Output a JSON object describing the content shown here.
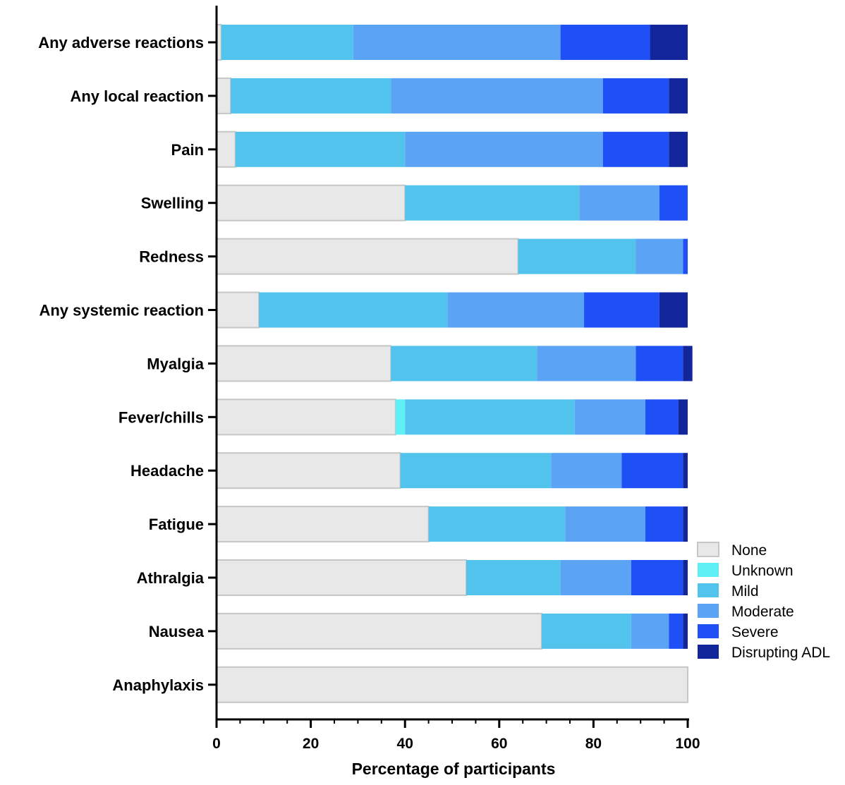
{
  "chart_data": {
    "type": "bar",
    "orientation": "horizontal",
    "stacked": true,
    "title": "",
    "xlabel": "Percentage of participants",
    "ylabel": "",
    "xlim": [
      0,
      100
    ],
    "xticks": [
      "0",
      "20",
      "40",
      "60",
      "80",
      "100"
    ],
    "grid": false,
    "legend_position": "right",
    "categories": [
      "Any adverse reactions",
      "Any local reaction",
      "Pain",
      "Swelling",
      "Redness",
      "Any systemic reaction",
      "Myalgia",
      "Fever/chills",
      "Headache",
      "Fatigue",
      "Athralgia",
      "Nausea",
      "Anaphylaxis"
    ],
    "series": [
      {
        "name": "None",
        "color": "#e8e8e8",
        "values": [
          1,
          3,
          4,
          40,
          64,
          9,
          37,
          38,
          39,
          45,
          53,
          69,
          100
        ]
      },
      {
        "name": "Unknown",
        "color": "#5ef0f5",
        "values": [
          0,
          0,
          0,
          0,
          0,
          0,
          0,
          2,
          0,
          0,
          0,
          0,
          0
        ]
      },
      {
        "name": "Mild",
        "color": "#52c3ed",
        "values": [
          28,
          34,
          36,
          37,
          25,
          40,
          31,
          36,
          32,
          29,
          20,
          19,
          0
        ]
      },
      {
        "name": "Moderate",
        "color": "#5ba3f4",
        "values": [
          44,
          45,
          42,
          17,
          10,
          29,
          21,
          15,
          15,
          17,
          15,
          8,
          0
        ]
      },
      {
        "name": "Severe",
        "color": "#1e50f5",
        "values": [
          19,
          14,
          14,
          6,
          1,
          16,
          10,
          7,
          13,
          8,
          11,
          3,
          0
        ]
      },
      {
        "name": "Disrupting ADL",
        "color": "#12259b",
        "values": [
          8,
          4,
          4,
          0,
          0,
          6,
          2,
          2,
          1,
          1,
          1,
          1,
          0
        ]
      }
    ]
  }
}
